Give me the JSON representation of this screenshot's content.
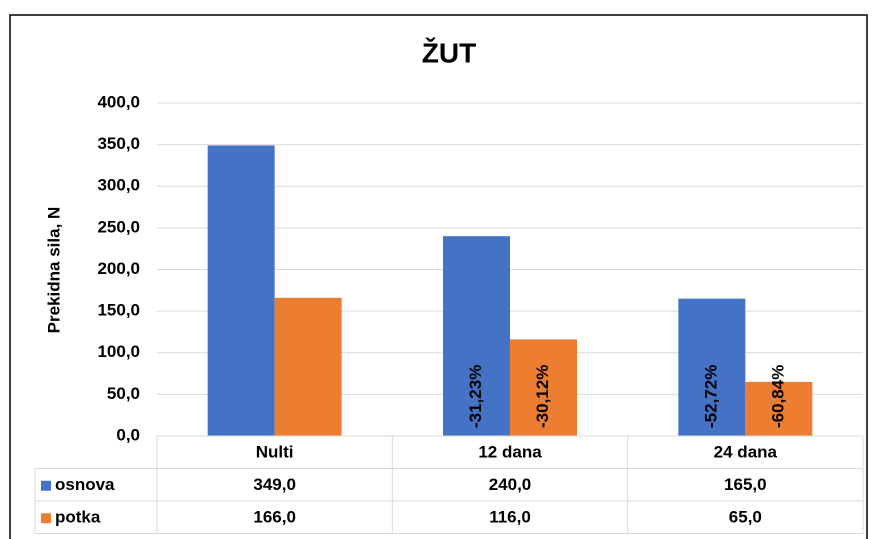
{
  "chart_data": {
    "type": "bar",
    "title": "ŽUT",
    "y_label": "Prekidna sila, N",
    "categories": [
      "Nulti",
      "12 dana",
      "24 dana"
    ],
    "series": [
      {
        "name": "osnova",
        "color": "#4472c4",
        "values": [
          349.0,
          240.0,
          165.0
        ],
        "value_labels": [
          "349,0",
          "240,0",
          "165,0"
        ],
        "change_labels": [
          null,
          "-31,23%",
          "-52,72%"
        ]
      },
      {
        "name": "potka",
        "color": "#ed7d31",
        "values": [
          166.0,
          116.0,
          65.0
        ],
        "value_labels": [
          "166,0",
          "116,0",
          "65,0"
        ],
        "change_labels": [
          null,
          "-30,12%",
          "-60,84%"
        ]
      }
    ],
    "ylim": [
      0,
      400
    ],
    "yticks": [
      {
        "value": 0,
        "label": "0,0"
      },
      {
        "value": 50,
        "label": "50,0"
      },
      {
        "value": 100,
        "label": "100,0"
      },
      {
        "value": 150,
        "label": "150,0"
      },
      {
        "value": 200,
        "label": "200,0"
      },
      {
        "value": 250,
        "label": "250,0"
      },
      {
        "value": 300,
        "label": "300,0"
      },
      {
        "value": 350,
        "label": "350,0"
      },
      {
        "value": 400,
        "label": "400,0"
      }
    ],
    "grid": true
  }
}
